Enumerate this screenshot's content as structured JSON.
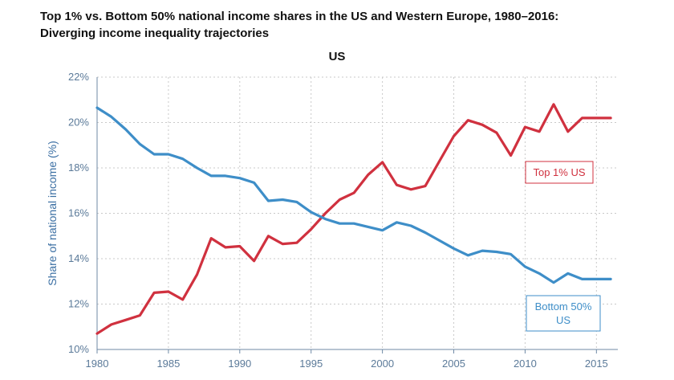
{
  "title_line1": "Top 1% vs. Bottom 50% national income shares in the US and Western Europe, 1980–2016:",
  "title_line2": "Diverging income inequality trajectories",
  "chart_data": {
    "type": "line",
    "title": "US",
    "xlabel": "",
    "ylabel": "Share of national income (%)",
    "xlim": [
      1980,
      2016.5
    ],
    "ylim": [
      10,
      22
    ],
    "grid": true,
    "x_ticks": [
      1980,
      1985,
      1990,
      1995,
      2000,
      2005,
      2010,
      2015
    ],
    "y_ticks": [
      10,
      12,
      14,
      16,
      18,
      20,
      22
    ],
    "y_tick_labels": [
      "10%",
      "12%",
      "14%",
      "16%",
      "18%",
      "20%",
      "22%"
    ],
    "x": [
      1980,
      1981,
      1982,
      1983,
      1984,
      1985,
      1986,
      1987,
      1988,
      1989,
      1990,
      1991,
      1992,
      1993,
      1994,
      1995,
      1996,
      1997,
      1998,
      1999,
      2000,
      2001,
      2002,
      2003,
      2004,
      2005,
      2006,
      2007,
      2008,
      2009,
      2010,
      2011,
      2012,
      2013,
      2014,
      2015,
      2016
    ],
    "series": [
      {
        "name": "Top 1% US",
        "color": "#d0313f",
        "label_lines": [
          "Top 1% US"
        ],
        "values": [
          10.7,
          11.1,
          11.3,
          11.5,
          12.5,
          12.55,
          12.2,
          13.3,
          14.9,
          14.5,
          14.55,
          13.9,
          15.0,
          14.65,
          14.7,
          15.3,
          16.0,
          16.6,
          16.9,
          17.7,
          18.25,
          17.25,
          17.05,
          17.2,
          18.3,
          19.4,
          20.1,
          19.9,
          19.55,
          18.55,
          19.8,
          19.6,
          20.8,
          19.6,
          20.2,
          20.2,
          20.2
        ]
      },
      {
        "name": "Bottom 50% US",
        "color": "#3e8ec8",
        "label_lines": [
          "Bottom 50%",
          "US"
        ],
        "values": [
          20.65,
          20.25,
          19.7,
          19.05,
          18.6,
          18.6,
          18.4,
          18.0,
          17.65,
          17.65,
          17.55,
          17.35,
          16.55,
          16.6,
          16.5,
          16.05,
          15.75,
          15.55,
          15.55,
          15.4,
          15.25,
          15.6,
          15.45,
          15.15,
          14.8,
          14.45,
          14.15,
          14.35,
          14.3,
          14.2,
          13.65,
          13.35,
          12.95,
          13.35,
          13.1,
          13.1,
          13.1
        ]
      }
    ]
  }
}
